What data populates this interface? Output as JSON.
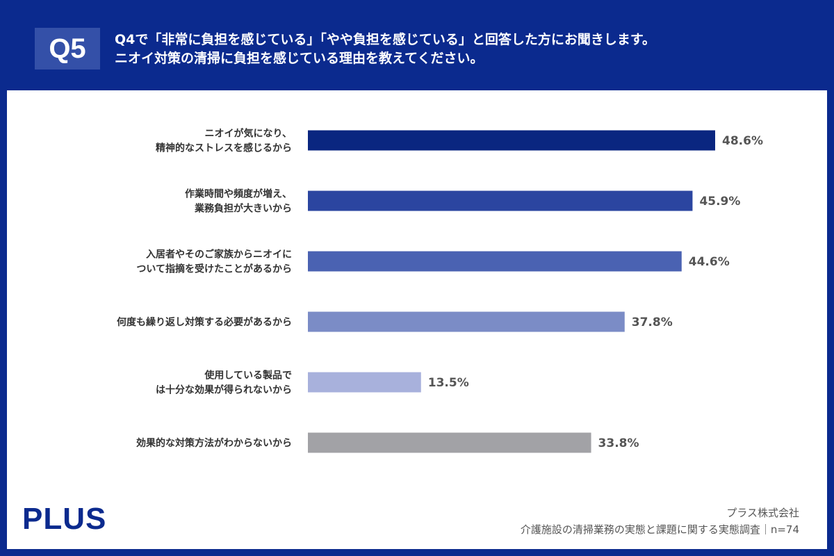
{
  "header": {
    "badge": "Q5",
    "question_line1": "Q4で「非常に負担を感じている」「やや負担を感じている」と回答した方にお聞きします。",
    "question_line2": "ニオイ対策の清掃に負担を感じている理由を教えてください。"
  },
  "chart_data": {
    "type": "bar",
    "orientation": "horizontal",
    "unit": "%",
    "categories": [
      [
        "ニオイが気になり、",
        "精神的なストレスを感じるから"
      ],
      [
        "作業時間や頻度が増え、",
        "業務負担が大きいから"
      ],
      [
        "入居者やそのご家族からニオイに",
        "ついて指摘を受けたことがあるから"
      ],
      [
        "何度も繰り返し対策する必要があるから"
      ],
      [
        "使用している製品で",
        "は十分な効果が得られないから"
      ],
      [
        "効果的な対策方法がわからないから"
      ]
    ],
    "values": [
      48.6,
      45.9,
      44.6,
      37.8,
      13.5,
      33.8
    ],
    "data_labels": [
      "48.6%",
      "45.9%",
      "44.6%",
      "37.8%",
      "13.5%",
      "33.8%"
    ],
    "colors": [
      "#0a2680",
      "#2b45a0",
      "#4a62b2",
      "#7b8cc6",
      "#a8b1dc",
      "#a2a2a6"
    ],
    "grid": false
  },
  "footer": {
    "logo": "PLUS",
    "company": "プラス株式会社",
    "survey": "介護施設の清掃業務の実態と課題に関する実態調査｜n=74"
  }
}
